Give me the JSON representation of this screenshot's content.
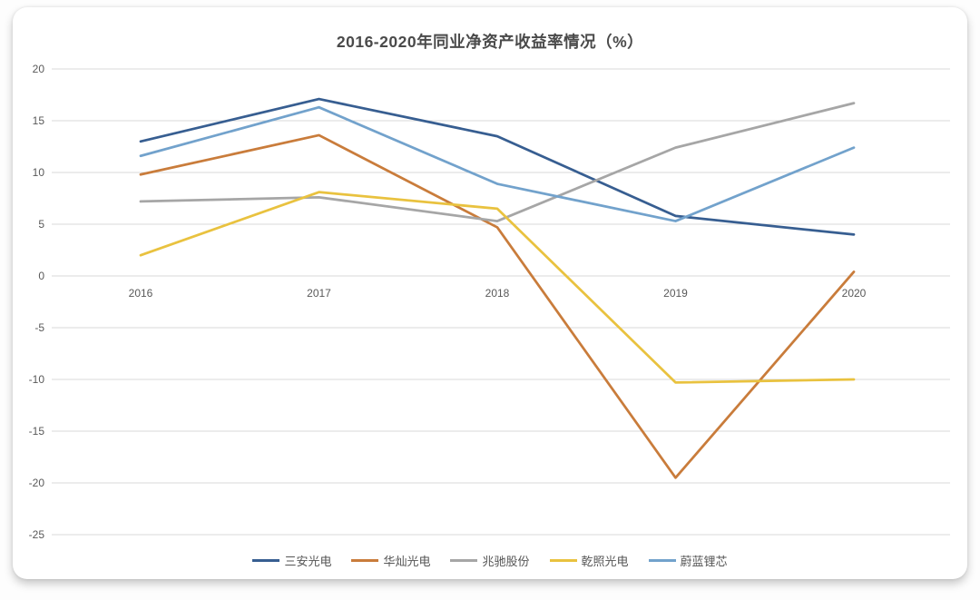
{
  "title": "2016-2020年同业净资产收益率情况（%）",
  "chart_data": {
    "type": "line",
    "title": "2016-2020年同业净资产收益率情况（%）",
    "x_labels": [
      "2016",
      "2017",
      "2018",
      "2019",
      "2020"
    ],
    "y_ticks": [
      20,
      15,
      10,
      5,
      0,
      -5,
      -10,
      -15,
      -20,
      -25
    ],
    "ylim": [
      -25,
      20
    ],
    "grid": "horizontal",
    "legend_position": "bottom",
    "axis_label_color": "#595959",
    "gridline_color": "#D9D9D9",
    "series": [
      {
        "name": "三安光电",
        "color": "#375E91",
        "values": [
          13.0,
          17.1,
          13.5,
          5.8,
          4.0
        ]
      },
      {
        "name": "华灿光电",
        "color": "#C97C3B",
        "values": [
          9.8,
          13.6,
          4.7,
          -19.5,
          0.4
        ]
      },
      {
        "name": "兆驰股份",
        "color": "#A6A6A6",
        "values": [
          7.2,
          7.6,
          5.3,
          12.4,
          16.7
        ]
      },
      {
        "name": "乾照光电",
        "color": "#E9C23F",
        "values": [
          2.0,
          8.1,
          6.5,
          -10.3,
          -10.0
        ]
      },
      {
        "name": "蔚蓝锂芯",
        "color": "#72A2CC",
        "values": [
          11.6,
          16.3,
          8.9,
          5.3,
          12.4
        ]
      }
    ]
  }
}
